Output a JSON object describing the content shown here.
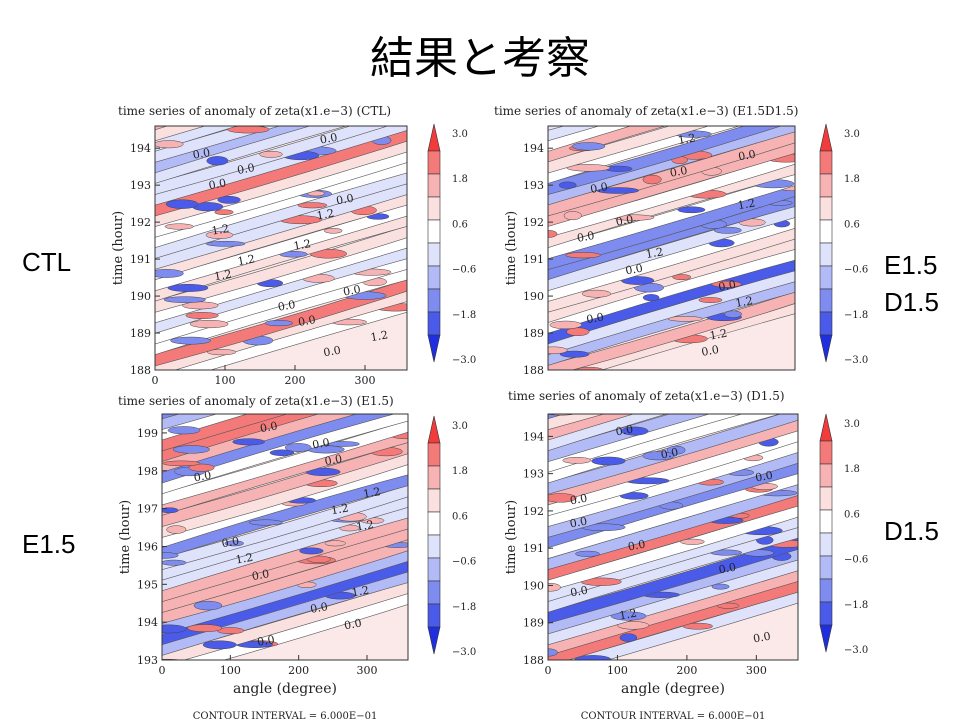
{
  "slide": {
    "title": "結果と考察",
    "labels": {
      "ctl": "CTL",
      "e15d15_line1": "E1.5",
      "e15d15_line2": "D1.5",
      "e15": "E1.5",
      "d15": "D1.5"
    }
  },
  "colorbar": {
    "ticks": [
      "3.0",
      "1.8",
      "0.6",
      "−0.6",
      "−1.8",
      "−3.0"
    ],
    "colors": [
      "#f23b3b",
      "#f47a7a",
      "#f7b3b3",
      "#fbe0e0",
      "#ffffff",
      "#dfe2fb",
      "#b3bbf6",
      "#7e8cf0",
      "#4a5be9",
      "#1f2fe0"
    ]
  },
  "chart_data": [
    {
      "type": "heatmap",
      "title": "time series of anomaly of zeta(x1.e−3) (CTL)",
      "xlabel": "",
      "ylabel": "time (hour)",
      "xlim": [
        0,
        360
      ],
      "ylim": [
        188,
        194.6
      ],
      "x_ticks": [
        "0",
        "100",
        "200",
        "300"
      ],
      "y_ticks": [
        "188",
        "189",
        "190",
        "191",
        "192",
        "193",
        "194"
      ],
      "contour_labels": [
        "0.0",
        "0.0",
        "0.0",
        "0.0",
        "0.0",
        "1.2",
        "1.2",
        "1.2",
        "1.2",
        "1.2",
        "0.0",
        "0.0",
        "0.0",
        "1.2",
        "0.0"
      ],
      "footer": ""
    },
    {
      "type": "heatmap",
      "title": "time series of anomaly of zeta(x1.e−3) (E1.5D1.5)",
      "xlabel": "",
      "ylabel": "time (hour)",
      "xlim": [
        0,
        360
      ],
      "ylim": [
        188,
        194.6
      ],
      "x_ticks": [],
      "y_ticks": [
        "188",
        "189",
        "190",
        "191",
        "192",
        "193",
        "194"
      ],
      "contour_labels": [
        "1.2",
        "0.0",
        "0.0",
        "0.0",
        "1.2",
        "0.0",
        "0.0",
        "1.2",
        "0.0",
        "0.0",
        "1.2",
        "0.0",
        "1.2",
        "0.0"
      ],
      "footer": ""
    },
    {
      "type": "heatmap",
      "title": "time series of anomaly of zeta(x1.e−3) (E1.5)",
      "xlabel": "angle (degree)",
      "ylabel": "time (hour)",
      "xlim": [
        0,
        360
      ],
      "ylim": [
        193,
        199.5
      ],
      "x_ticks": [
        "0",
        "100",
        "200",
        "300"
      ],
      "y_ticks": [
        "193",
        "194",
        "195",
        "196",
        "197",
        "198",
        "199"
      ],
      "contour_labels": [
        "0.0",
        "0.0",
        "0.0",
        "0.0",
        "1.2",
        "1.2",
        "1.2",
        "0.0",
        "1.2",
        "0.0",
        "1.2",
        "0.0",
        "0.0",
        "0.0"
      ],
      "footer": "CONTOUR INTERVAL = 6.000E−01"
    },
    {
      "type": "heatmap",
      "title": "time series of anomaly of zeta(x1.e−3) (D1.5)",
      "xlabel": "angle (degree)",
      "ylabel": "time (hour)",
      "xlim": [
        0,
        360
      ],
      "ylim": [
        188,
        194.6
      ],
      "x_ticks": [
        "0",
        "100",
        "200",
        "300"
      ],
      "y_ticks": [
        "188",
        "189",
        "190",
        "191",
        "192",
        "193",
        "194"
      ],
      "contour_labels": [
        "0.0",
        "0.0",
        "0.0",
        "0.0",
        "0.0",
        "0.0",
        "0.0",
        "0.0",
        "1.2",
        "0.0"
      ],
      "footer": "CONTOUR INTERVAL = 6.000E−01"
    }
  ]
}
